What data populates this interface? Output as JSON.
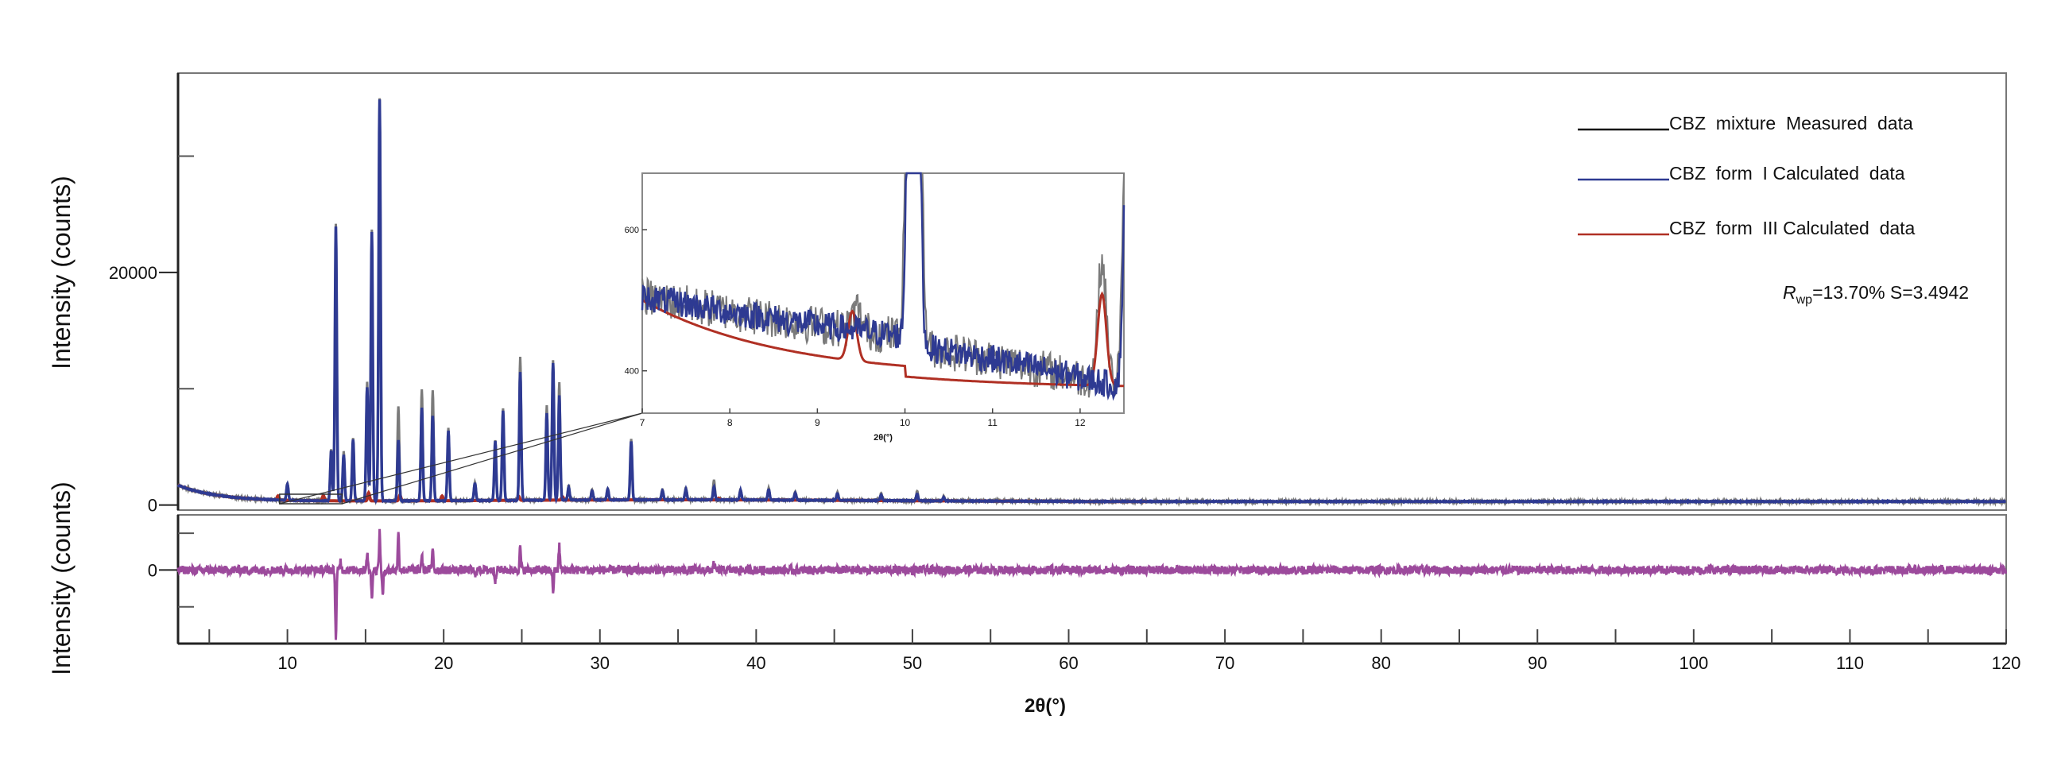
{
  "chart_data": {
    "type": "line",
    "xlabel": "2θ(°)",
    "ylabel_top": "Intensity (counts)",
    "ylabel_bottom": "Intensity (counts)",
    "xlim": [
      3,
      120
    ],
    "x_ticks": [
      10,
      20,
      30,
      40,
      50,
      60,
      70,
      80,
      90,
      100,
      110,
      120
    ],
    "y_top": {
      "ylim": [
        -300,
        37000
      ],
      "ticks": [
        0,
        20000
      ],
      "minor_ticks": [
        10000,
        30000
      ]
    },
    "y_bottom": {
      "ylim": [
        -6000,
        4500
      ],
      "ticks": [
        0
      ],
      "minor_ticks": [
        3000,
        -3000
      ]
    },
    "legend": {
      "placement": "top-right",
      "entries": [
        {
          "label": "CBZ  mixture  Measured  data",
          "color": "#111111"
        },
        {
          "label": "CBZ  form  I Calculated  data",
          "color": "#2e3a92"
        },
        {
          "label": "CBZ  form  III Calculated  data",
          "color": "#b03024"
        }
      ]
    },
    "annotation": {
      "r_symbol": "R",
      "r_sub": "wp",
      "rest": "=13.70% S=3.4942"
    },
    "series": [
      {
        "name": "CBZ  mixture  Measured  data",
        "color": "#7a7a7a",
        "peaks": [
          [
            10.0,
            1450
          ],
          [
            12.8,
            4500
          ],
          [
            13.1,
            23800
          ],
          [
            13.6,
            4200
          ],
          [
            14.2,
            5400
          ],
          [
            15.1,
            10300
          ],
          [
            15.4,
            23300
          ],
          [
            15.9,
            34600
          ],
          [
            17.1,
            8100
          ],
          [
            18.6,
            9600
          ],
          [
            19.3,
            9500
          ],
          [
            20.3,
            6200
          ],
          [
            22.0,
            1600
          ],
          [
            23.3,
            5200
          ],
          [
            23.8,
            7900
          ],
          [
            24.9,
            12300
          ],
          [
            26.6,
            8100
          ],
          [
            27.0,
            12000
          ],
          [
            27.4,
            10200
          ],
          [
            28.0,
            1200
          ],
          [
            29.5,
            900
          ],
          [
            30.5,
            1000
          ],
          [
            32.0,
            5200
          ],
          [
            34.0,
            900
          ],
          [
            35.5,
            1100
          ],
          [
            37.3,
            1700
          ],
          [
            39.0,
            900
          ],
          [
            40.8,
            1000
          ],
          [
            42.5,
            700
          ],
          [
            45.2,
            700
          ],
          [
            48.0,
            600
          ],
          [
            50.3,
            800
          ],
          [
            52.0,
            400
          ]
        ]
      },
      {
        "name": "CBZ  form  I Calculated  data",
        "color": "#2e3a92",
        "peaks": [
          [
            10.0,
            1400
          ],
          [
            12.8,
            4300
          ],
          [
            13.1,
            23600
          ],
          [
            13.6,
            4000
          ],
          [
            14.2,
            5300
          ],
          [
            15.1,
            9800
          ],
          [
            15.4,
            23100
          ],
          [
            15.9,
            34500
          ],
          [
            17.1,
            5200
          ],
          [
            18.6,
            8000
          ],
          [
            19.3,
            7300
          ],
          [
            20.3,
            6000
          ],
          [
            22.0,
            1500
          ],
          [
            23.3,
            5100
          ],
          [
            23.8,
            7700
          ],
          [
            24.9,
            11000
          ],
          [
            26.6,
            7500
          ],
          [
            27.0,
            11800
          ],
          [
            27.4,
            9000
          ],
          [
            28.0,
            1100
          ],
          [
            29.5,
            800
          ],
          [
            30.5,
            900
          ],
          [
            32.0,
            5000
          ],
          [
            34.0,
            800
          ],
          [
            35.5,
            900
          ],
          [
            37.3,
            1100
          ],
          [
            39.0,
            800
          ],
          [
            40.8,
            900
          ],
          [
            42.5,
            600
          ],
          [
            45.2,
            600
          ],
          [
            48.0,
            500
          ],
          [
            50.3,
            600
          ],
          [
            52.0,
            300
          ]
        ]
      },
      {
        "name": "CBZ  form  III Calculated  data",
        "color": "#b03024",
        "peaks": [
          [
            9.4,
            350
          ],
          [
            12.3,
            450
          ],
          [
            15.2,
            700
          ],
          [
            17.2,
            500
          ],
          [
            19.9,
            400
          ],
          [
            24.8,
            350
          ],
          [
            27.6,
            300
          ],
          [
            37.6,
            150
          ]
        ]
      },
      {
        "name": "difference",
        "color": "#9c4a9c",
        "peaks": [
          [
            13.1,
            -5600
          ],
          [
            13.4,
            800
          ],
          [
            15.1,
            1400
          ],
          [
            15.4,
            -2200
          ],
          [
            15.9,
            3000
          ],
          [
            16.1,
            -2100
          ],
          [
            17.1,
            2900
          ],
          [
            18.6,
            1200
          ],
          [
            19.3,
            1900
          ],
          [
            22.0,
            -500
          ],
          [
            23.3,
            -800
          ],
          [
            24.9,
            1800
          ],
          [
            27.0,
            -1700
          ],
          [
            27.4,
            2000
          ],
          [
            37.3,
            500
          ]
        ]
      }
    ],
    "inset": {
      "xlim": [
        7,
        12.5
      ],
      "ylim": [
        340,
        680
      ],
      "x_ticks": [
        7,
        8,
        9,
        10,
        11,
        12
      ],
      "y_ticks": [
        400,
        600
      ],
      "xlabel": "2θ(°)",
      "zoom_region_x": [
        9.5,
        13.5
      ]
    }
  }
}
